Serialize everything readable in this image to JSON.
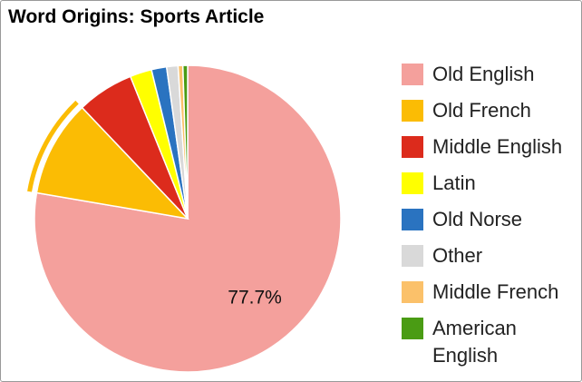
{
  "chart_data": {
    "type": "pie",
    "title": "Word Origins: Sports Article",
    "categories": [
      "Old English",
      "Old French",
      "Middle English",
      "Latin",
      "Old Norse",
      "Other",
      "Middle French",
      "American English"
    ],
    "values": [
      77.7,
      10.2,
      6,
      2.3,
      1.6,
      1.2,
      0.5,
      0.5
    ],
    "value_labels": [
      "77.7%",
      null,
      null,
      null,
      null,
      null,
      null,
      null
    ],
    "colors": [
      "#f4a09c",
      "#fbbc04",
      "#dc2b1c",
      "#ffff00",
      "#2a73c0",
      "#d9d9d9",
      "#fbc16a",
      "#4a9c14"
    ],
    "highlighted": 1
  }
}
